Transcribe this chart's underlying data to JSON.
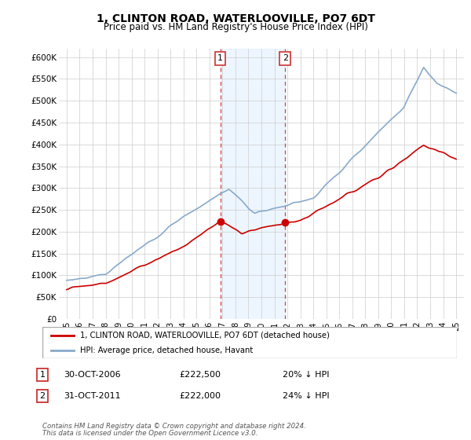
{
  "title": "1, CLINTON ROAD, WATERLOOVILLE, PO7 6DT",
  "subtitle": "Price paid vs. HM Land Registry's House Price Index (HPI)",
  "title_fontsize": 10,
  "subtitle_fontsize": 8.5,
  "ylim": [
    0,
    620000
  ],
  "yticks": [
    0,
    50000,
    100000,
    150000,
    200000,
    250000,
    300000,
    350000,
    400000,
    450000,
    500000,
    550000,
    600000
  ],
  "background_color": "#ffffff",
  "grid_color": "#cccccc",
  "sale1_year": 2006.83,
  "sale1_price": 222500,
  "sale2_year": 2011.83,
  "sale2_price": 222000,
  "shade_color": "#ddeeff",
  "shade_alpha": 0.5,
  "red_line_color": "#cc0000",
  "blue_line_color": "#88aacc",
  "legend_entries": [
    "1, CLINTON ROAD, WATERLOOVILLE, PO7 6DT (detached house)",
    "HPI: Average price, detached house, Havant"
  ],
  "footer_line1": "Contains HM Land Registry data © Crown copyright and database right 2024.",
  "footer_line2": "This data is licensed under the Open Government Licence v3.0.",
  "table_rows": [
    {
      "num": "1",
      "date": "30-OCT-2006",
      "price": "£222,500",
      "pct": "20% ↓ HPI"
    },
    {
      "num": "2",
      "date": "31-OCT-2011",
      "price": "£222,000",
      "pct": "24% ↓ HPI"
    }
  ]
}
